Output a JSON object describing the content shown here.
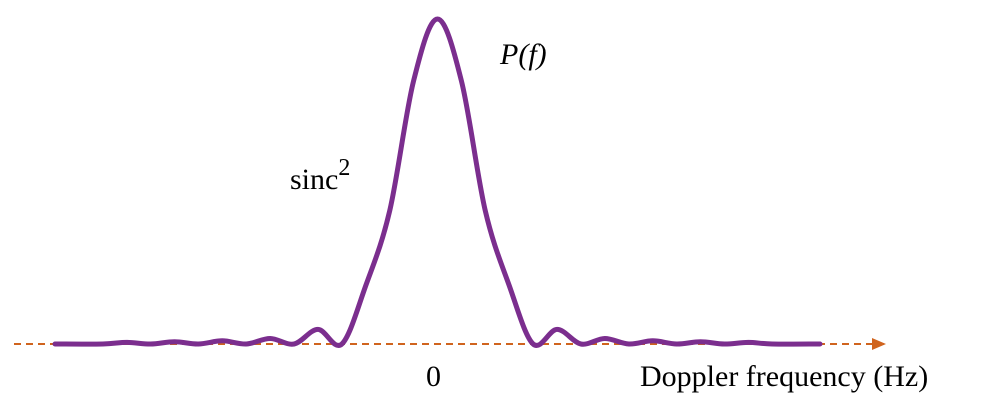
{
  "chart_data": {
    "type": "line",
    "curve_label": "P(f)",
    "function_label": "sinc",
    "function_exponent": "2",
    "x_tick_label": "0",
    "xlabel": "Doppler frequency (Hz)",
    "ylabel": "",
    "x_range": [
      -8,
      8
    ],
    "y_range": [
      0,
      1
    ],
    "axis_arrow": true,
    "grid": false,
    "series": [
      {
        "x": [
          -8,
          -7,
          -6.5,
          -6,
          -5.5,
          -5,
          -4.5,
          -4,
          -3.5,
          -3,
          -2.5,
          -2,
          -1.5,
          -1,
          -0.5,
          0,
          0.5,
          1,
          1.5,
          2,
          2.5,
          3,
          3.5,
          4,
          4.5,
          5,
          5.5,
          6,
          6.5,
          7,
          8
        ],
        "y": [
          0,
          0,
          0.005,
          0,
          0.007,
          0,
          0.01,
          0,
          0.017,
          0,
          0.045,
          0,
          0.18,
          0.41,
          0.81,
          1.0,
          0.81,
          0.41,
          0.18,
          0,
          0.045,
          0,
          0.017,
          0,
          0.01,
          0,
          0.007,
          0,
          0.005,
          0,
          0
        ]
      }
    ],
    "colors": {
      "curve": "#7b2e8e",
      "axis": "#d0641e",
      "text": "#000000"
    }
  }
}
